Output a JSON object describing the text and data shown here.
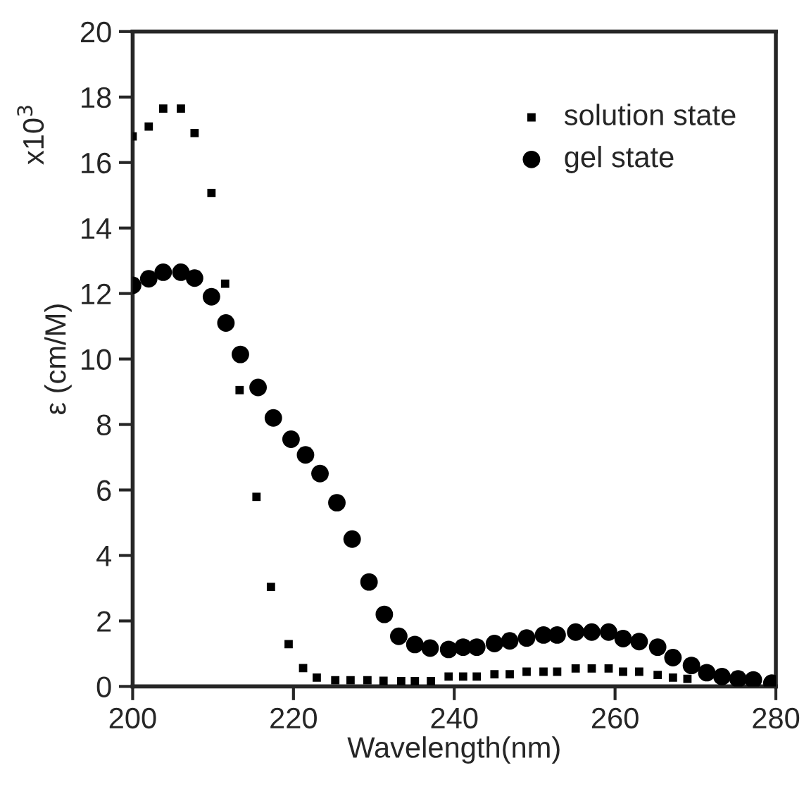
{
  "chart_data": {
    "type": "scatter",
    "xlabel": "Wavelength(nm)",
    "ylabel": "ε (cm/M)",
    "annotations": [
      "x10$^{3}$"
    ],
    "xlim": [
      200,
      280
    ],
    "xticks": [
      200,
      220,
      240,
      260,
      280
    ],
    "ylim": [
      0,
      20
    ],
    "yticks": [
      0,
      2,
      4,
      6,
      8,
      10,
      12,
      14,
      16,
      18,
      20
    ],
    "grid": false,
    "legend": "top right",
    "series": [
      {
        "name": "solution state",
        "color": "#000000",
        "marker": "square",
        "x": [
          200,
          202,
          203.8,
          206,
          207.7,
          209.8,
          211.5,
          213.3,
          215.4,
          217.2,
          219.4,
          221.2,
          222.9,
          225.2,
          227.1,
          229.2,
          231.2,
          233.4,
          235.1,
          237.1,
          239.3,
          241.1,
          242.8,
          245,
          246.9,
          249,
          251.1,
          252.8,
          255.1,
          257.1,
          259.2,
          261,
          263,
          265.3,
          267.2,
          269
        ],
        "values": [
          16.8,
          17.1,
          17.65,
          17.65,
          16.9,
          15.07,
          12.3,
          9.05,
          5.79,
          3.04,
          1.29,
          0.56,
          0.27,
          0.19,
          0.19,
          0.19,
          0.17,
          0.16,
          0.16,
          0.16,
          0.3,
          0.3,
          0.3,
          0.37,
          0.37,
          0.45,
          0.45,
          0.45,
          0.55,
          0.55,
          0.55,
          0.45,
          0.45,
          0.35,
          0.27,
          0.23
        ]
      },
      {
        "name": "gel state",
        "color": "#000000",
        "marker": "circle",
        "x": [
          200,
          202,
          203.8,
          206,
          207.7,
          209.8,
          211.6,
          213.4,
          215.6,
          217.5,
          219.7,
          221.5,
          223.3,
          225.4,
          227.3,
          229.4,
          231.3,
          233.1,
          235.1,
          237,
          239.3,
          241.1,
          242.8,
          245,
          246.9,
          249,
          251.1,
          252.8,
          255.1,
          257.1,
          259.2,
          261,
          263,
          265.3,
          267.2,
          269.5,
          271.4,
          273.3,
          275.3,
          277.2,
          279.5
        ],
        "values": [
          12.25,
          12.45,
          12.65,
          12.65,
          12.47,
          11.9,
          11.1,
          10.14,
          9.13,
          8.2,
          7.55,
          7.07,
          6.5,
          5.61,
          4.5,
          3.19,
          2.2,
          1.53,
          1.28,
          1.17,
          1.13,
          1.2,
          1.2,
          1.31,
          1.39,
          1.48,
          1.57,
          1.57,
          1.66,
          1.66,
          1.66,
          1.46,
          1.37,
          1.2,
          0.88,
          0.64,
          0.42,
          0.3,
          0.23,
          0.2,
          0.1
        ]
      }
    ]
  }
}
